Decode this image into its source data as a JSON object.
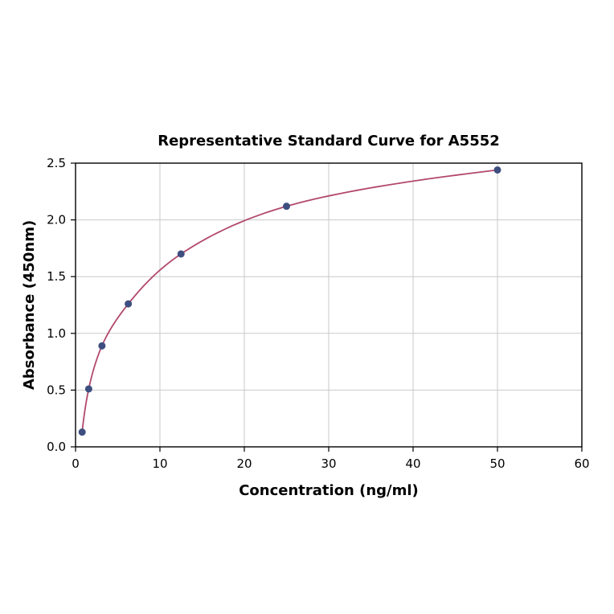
{
  "chart_data": {
    "type": "line",
    "title": "Representative Standard Curve for A5552",
    "xlabel": "Concentration (ng/ml)",
    "ylabel": "Absorbance (450nm)",
    "xlim": [
      0,
      60
    ],
    "ylim": [
      0.0,
      2.5
    ],
    "xticks": [
      0,
      10,
      20,
      30,
      40,
      50,
      60
    ],
    "yticks": [
      0.0,
      0.5,
      1.0,
      1.5,
      2.0,
      2.5
    ],
    "grid": true,
    "legend": "none",
    "line_color": "#b2486d",
    "marker_color": "#3e4e80",
    "grid_color": "#c9c9c9",
    "points": [
      {
        "x": 0.78,
        "y": 0.13
      },
      {
        "x": 1.56,
        "y": 0.51
      },
      {
        "x": 3.13,
        "y": 0.89
      },
      {
        "x": 6.25,
        "y": 1.26
      },
      {
        "x": 12.5,
        "y": 1.7
      },
      {
        "x": 25.0,
        "y": 2.12
      },
      {
        "x": 50.0,
        "y": 2.44
      }
    ]
  }
}
